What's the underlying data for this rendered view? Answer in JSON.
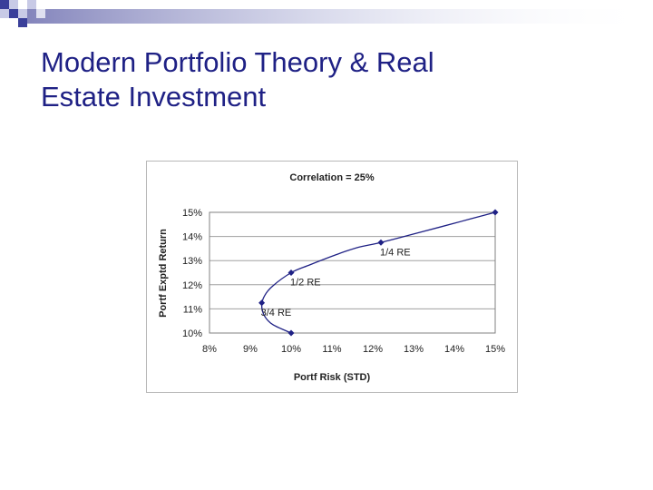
{
  "slide": {
    "title_line1": "Modern Portfolio Theory & Real",
    "title_line2": "Estate Investment",
    "title_color": "#1f2185"
  },
  "chart_data": {
    "type": "line",
    "title": "Correlation = 25%",
    "xlabel": "Portf Risk (STD)",
    "ylabel": "Portf Exptd Return",
    "xlim": [
      0.08,
      0.15
    ],
    "ylim": [
      0.1,
      0.15
    ],
    "x_ticks": [
      "8%",
      "9%",
      "10%",
      "11%",
      "12%",
      "13%",
      "14%",
      "15%"
    ],
    "y_ticks": [
      "10%",
      "11%",
      "12%",
      "13%",
      "14%",
      "15%"
    ],
    "grid": "horizontal",
    "line_color": "#1f2185",
    "curve": [
      [
        0.1,
        0.1
      ],
      [
        0.0955,
        0.1035
      ],
      [
        0.0935,
        0.107
      ],
      [
        0.0928,
        0.1113
      ],
      [
        0.0935,
        0.1155
      ],
      [
        0.0955,
        0.1195
      ],
      [
        0.1,
        0.125
      ],
      [
        0.1045,
        0.1282
      ],
      [
        0.11,
        0.1318
      ],
      [
        0.116,
        0.1353
      ],
      [
        0.122,
        0.1375
      ],
      [
        0.13,
        0.141
      ],
      [
        0.14,
        0.1455
      ],
      [
        0.15,
        0.15
      ]
    ],
    "points": [
      {
        "x": 0.1,
        "y": 0.1,
        "label": ""
      },
      {
        "x": 0.0928,
        "y": 0.1125,
        "label": "3/4 RE"
      },
      {
        "x": 0.1,
        "y": 0.125,
        "label": "1/2 RE"
      },
      {
        "x": 0.122,
        "y": 0.1375,
        "label": "1/4 RE"
      },
      {
        "x": 0.15,
        "y": 0.15,
        "label": ""
      }
    ]
  }
}
